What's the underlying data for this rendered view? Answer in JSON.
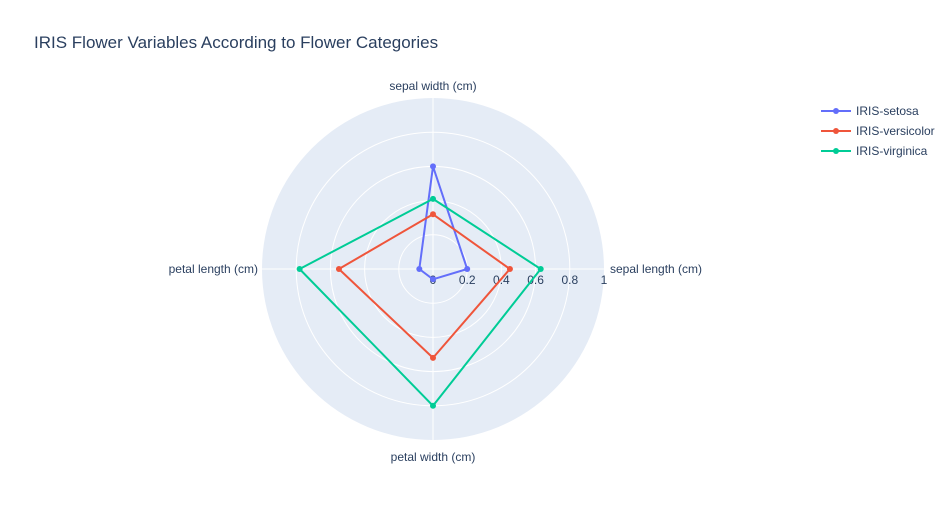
{
  "chart_data": {
    "type": "radar",
    "title": "IRIS Flower Variables According to Flower Categories",
    "axes": [
      "sepal length (cm)",
      "sepal width (cm)",
      "petal length (cm)",
      "petal width (cm)"
    ],
    "radial_range": [
      0,
      1
    ],
    "radial_ticks": [
      "0",
      "0.2",
      "0.4",
      "0.6",
      "0.8",
      "1"
    ],
    "series": [
      {
        "name": "IRIS-setosa",
        "color": "#636efa",
        "values": [
          0.2,
          0.6,
          0.08,
          0.06
        ]
      },
      {
        "name": "IRIS-versicolor",
        "color": "#ef553b",
        "values": [
          0.45,
          0.32,
          0.55,
          0.52
        ]
      },
      {
        "name": "IRIS-virginica",
        "color": "#00cc96",
        "values": [
          0.63,
          0.41,
          0.78,
          0.8
        ]
      }
    ],
    "background": "#e5ecf6",
    "legend_position": "top-right"
  }
}
